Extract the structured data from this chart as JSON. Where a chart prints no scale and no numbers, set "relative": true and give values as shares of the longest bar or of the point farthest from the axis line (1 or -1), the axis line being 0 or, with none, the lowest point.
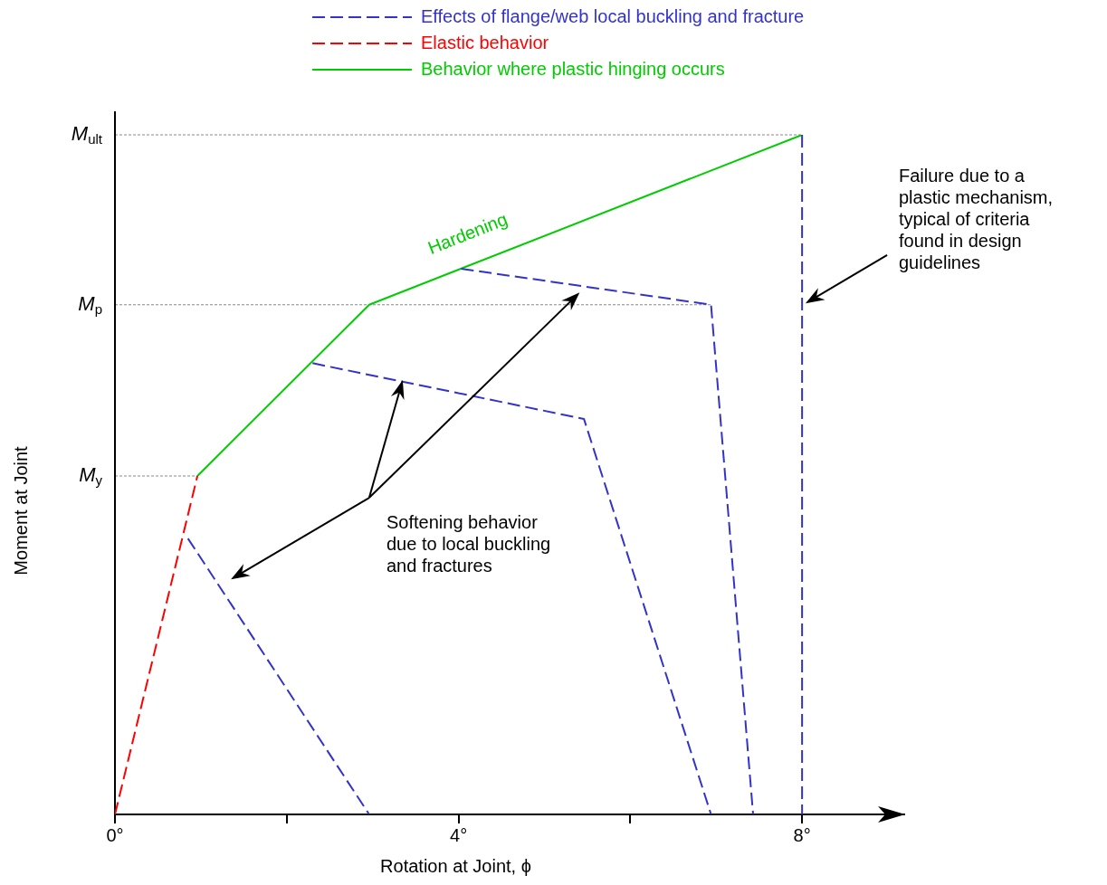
{
  "chart_data": {
    "type": "line",
    "relative": true,
    "xlabel": "Rotation at Joint, ϕ",
    "ylabel": "Moment at Joint",
    "xlim": [
      0,
      9.2
    ],
    "xticks": [
      {
        "value": 0,
        "label": "0°"
      },
      {
        "value": 2,
        "label": null
      },
      {
        "value": 4,
        "label": "4°"
      },
      {
        "value": 6,
        "label": null
      },
      {
        "value": 8,
        "label": "8°"
      }
    ],
    "series": [
      {
        "name": "Effects of flange/web local buckling and fracture",
        "color": "#3333cc",
        "line_style": "dashed",
        "x": [
          0.85,
          2.96,
          null,
          2.3,
          5.46,
          6.94,
          null,
          4.03,
          6.94,
          7.43,
          null,
          8,
          8
        ],
        "values": [
          0.406,
          0,
          null,
          0.664,
          0.582,
          0,
          null,
          0.803,
          0.75,
          0,
          null,
          1,
          0
        ]
      },
      {
        "name": "Elastic behavior",
        "color": "#ff0000",
        "line_style": "dashed",
        "x": [
          0,
          0.96
        ],
        "values": [
          0,
          0.498
        ]
      },
      {
        "name": "Behavior where plastic hinging occurs",
        "color": "#00cc00",
        "line_style": "solid",
        "x": [
          0.96,
          2.96,
          8
        ],
        "values": [
          0.498,
          0.75,
          1
        ]
      }
    ],
    "ref_lines": [
      {
        "axis": "y",
        "value": 0.498,
        "label": "M$_{y}$"
      },
      {
        "axis": "y",
        "value": 0.75,
        "label": "M$_{p}$"
      },
      {
        "axis": "y",
        "value": 1,
        "label": "M$_{ult}$"
      }
    ],
    "annotations": [
      "Hardening",
      "Softening behavior\ndue to local buckling\nand fractures",
      "Failure due to a\nplastic mechanism,\ntypical of criteria\nfound in design\nguidelines"
    ],
    "legend": "top",
    "grid": false
  }
}
